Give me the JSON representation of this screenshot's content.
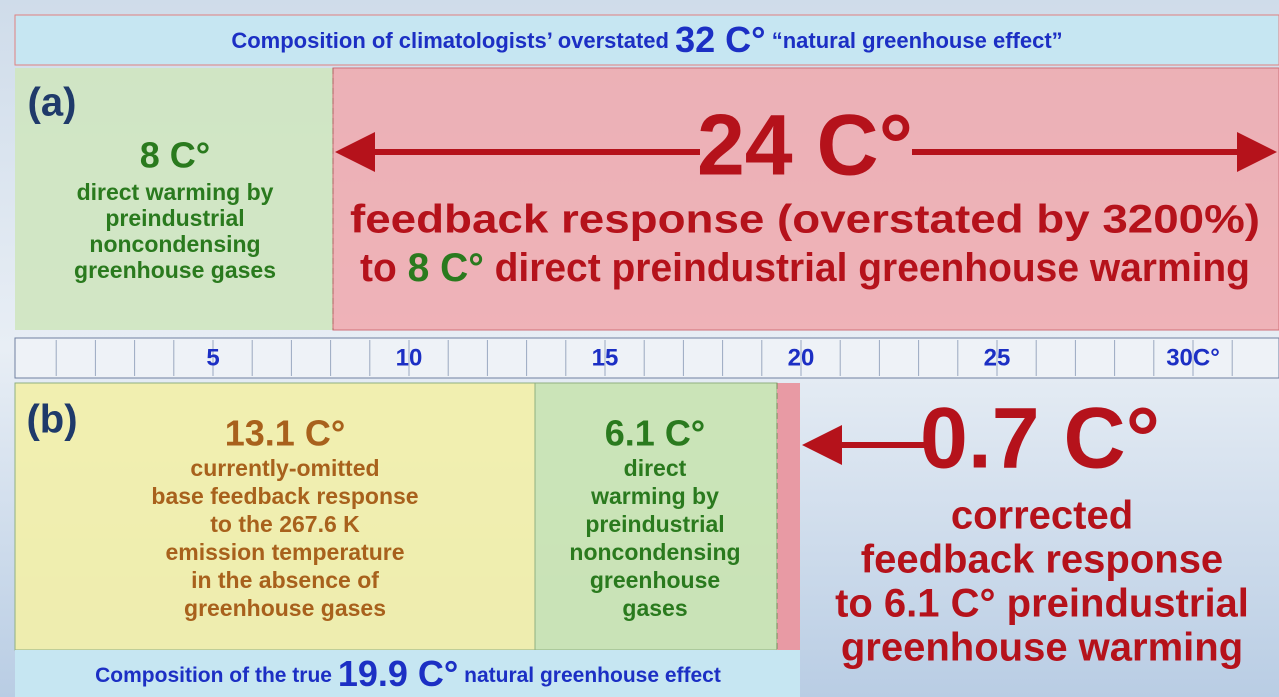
{
  "top_banner": {
    "prefix": "Composition of climatologists’ overstated",
    "highlight": "32 C°",
    "suffix": "“natural greenhouse effect”"
  },
  "panel_a": {
    "label": "(a)",
    "direct": {
      "value": "8 C°",
      "lines": [
        "direct warming by",
        "preindustrial",
        "noncondensing",
        "greenhouse gases"
      ]
    },
    "feedback": {
      "value": "24 C°",
      "line1": "feedback response (overstated by 3200%)",
      "line2_prefix": "to",
      "line2_highlight": "8 C°",
      "line2_suffix": "direct preindustrial greenhouse warming"
    }
  },
  "scale": {
    "labels": [
      "5",
      "10",
      "15",
      "20",
      "25",
      "30C°"
    ]
  },
  "panel_b": {
    "label": "(b)",
    "base": {
      "value": "13.1 C°",
      "lines": [
        "currently-omitted",
        "base feedback response",
        "to the 267.6 K",
        "emission temperature",
        "in the absence of",
        "greenhouse gases"
      ]
    },
    "direct": {
      "value": "6.1 C°",
      "lines": [
        "direct",
        "warming by",
        "preindustrial",
        "noncondensing",
        "greenhouse",
        "gases"
      ]
    },
    "feedback": {
      "value": "0.7 C°",
      "lines": [
        "corrected",
        "feedback response",
        "to 6.1 C° preindustrial",
        "greenhouse warming"
      ]
    }
  },
  "bottom_banner": {
    "prefix": "Composition of the true",
    "highlight": "19.9 C°",
    "suffix": "natural greenhouse effect"
  }
}
